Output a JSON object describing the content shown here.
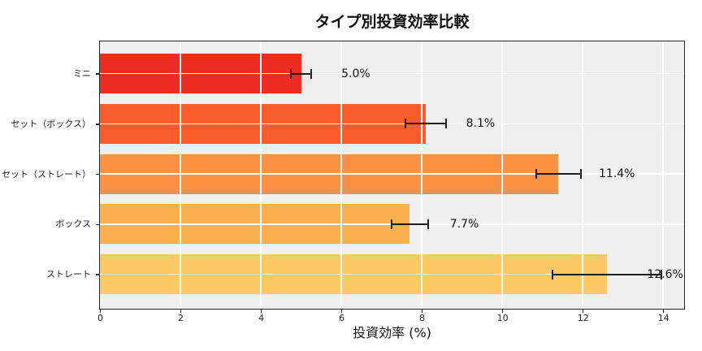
{
  "chart_data": {
    "type": "bar",
    "orientation": "horizontal",
    "title": "タイプ別投資効率比較",
    "xlabel": "投資効率 (%)",
    "ylabel": "",
    "categories": [
      "ミニ",
      "セット（ボックス）",
      "セット（ストレート）",
      "ボックス",
      "ストレート"
    ],
    "values": [
      5.0,
      8.1,
      11.4,
      7.7,
      12.6
    ],
    "errors": [
      0.25,
      0.5,
      0.55,
      0.45,
      1.35
    ],
    "value_labels": [
      "5.0%",
      "8.1%",
      "11.4%",
      "7.7%",
      "12.6%"
    ],
    "bar_colors": [
      "#ee2c23",
      "#fa5c2b",
      "#fb9142",
      "#fbb04e",
      "#fcc963"
    ],
    "xlim": [
      0,
      14.5
    ],
    "xticks": [
      0,
      2,
      4,
      6,
      8,
      10,
      12,
      14
    ],
    "grid": true,
    "legend": "none",
    "plot_background_color": "#efefef",
    "grid_color": "#ffffff",
    "axis_color": "#262626",
    "error_bar_color": "#1c1c1c"
  }
}
